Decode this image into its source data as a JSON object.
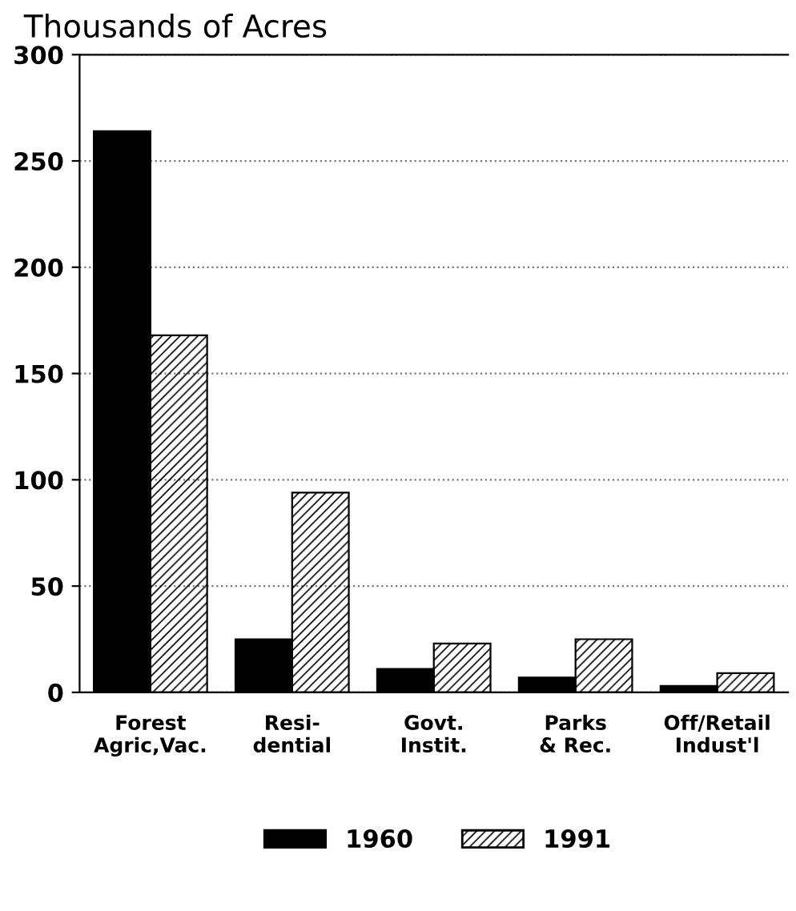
{
  "chart_data": {
    "type": "bar",
    "title": "Thousands of Acres",
    "categories": [
      "Forest\nAgric,Vac.",
      "Resi-\ndential",
      "Govt.\nInstit.",
      "Parks\n& Rec.",
      "Off/Retail\nIndust'l"
    ],
    "series": [
      {
        "name": "1960",
        "color": "#000000",
        "values": [
          264,
          25,
          11,
          7,
          3
        ]
      },
      {
        "name": "1991",
        "color": "#000000",
        "values": [
          168,
          94,
          23,
          25,
          9
        ]
      }
    ],
    "ylim": [
      0,
      300
    ],
    "yticks": [
      0,
      50,
      100,
      150,
      200,
      250,
      300
    ],
    "grid": "y",
    "legend": "bottom"
  }
}
